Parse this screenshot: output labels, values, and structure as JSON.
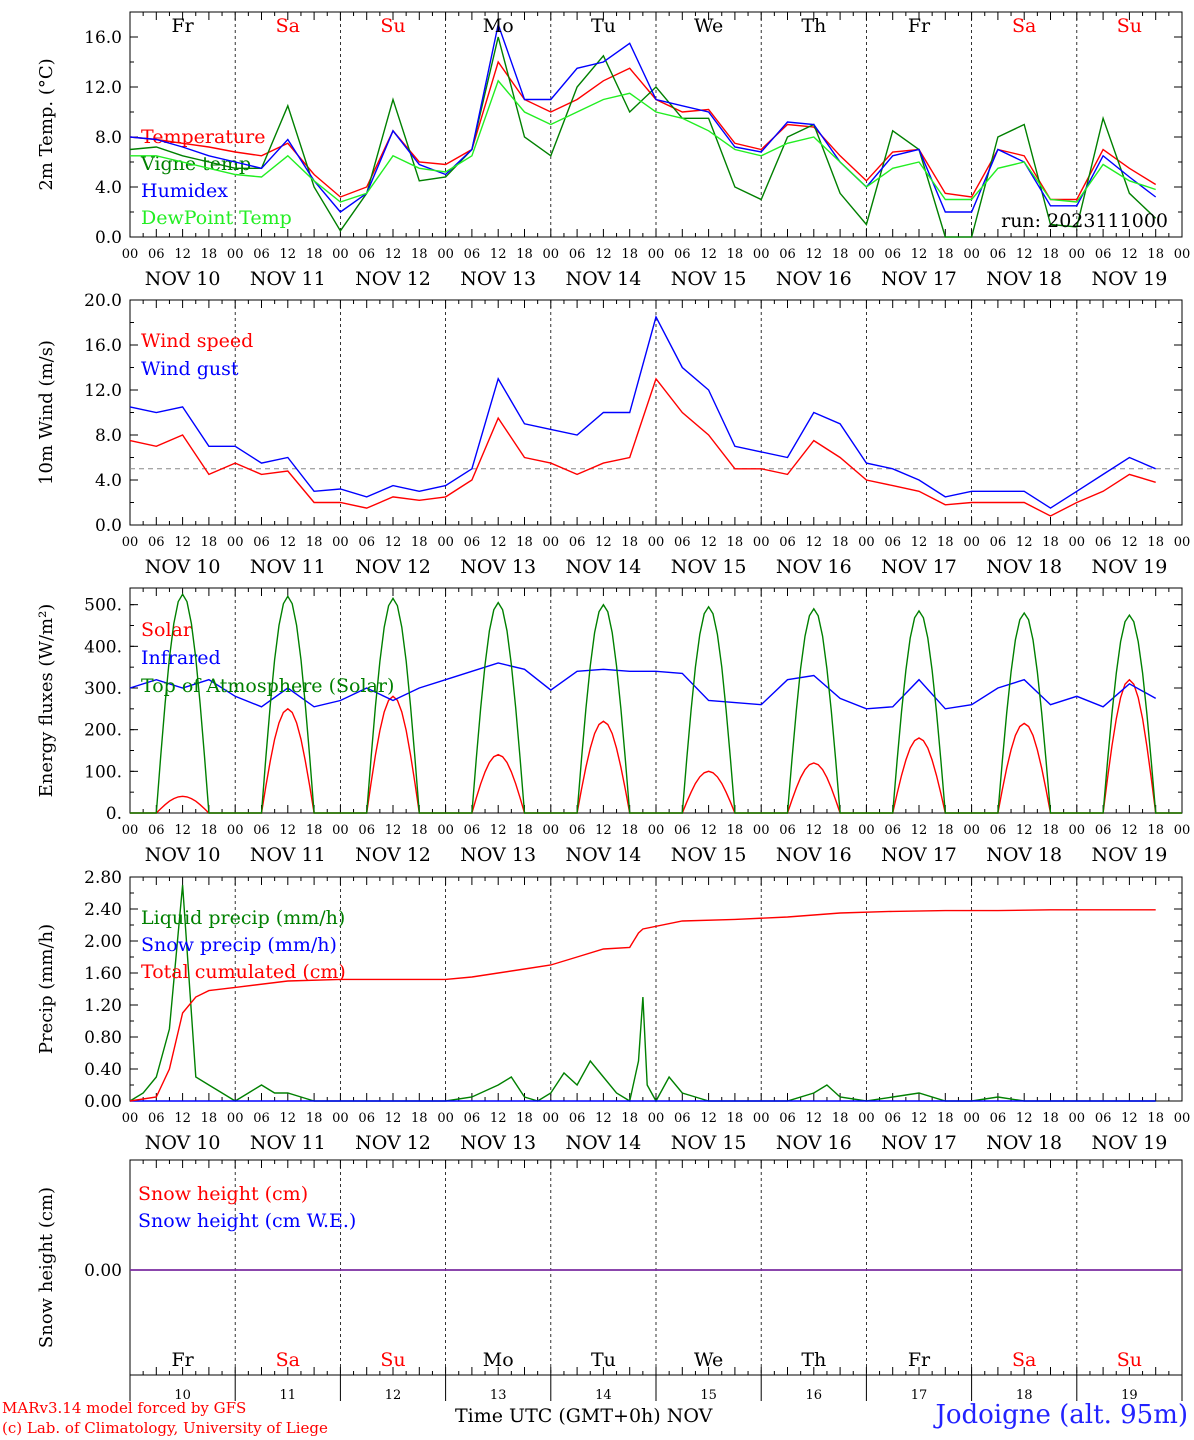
{
  "colors": {
    "red": "#ff0000",
    "blue": "#0000ff",
    "green": "#008000",
    "lightgreen": "#22ee22",
    "purple": "#7b2da0",
    "weekend": "#ff0000",
    "weekday": "#000000"
  },
  "days": {
    "weekday_labels": [
      "Fr",
      "Sa",
      "Su",
      "Mo",
      "Tu",
      "We",
      "Th",
      "Fr",
      "Sa",
      "Su"
    ],
    "weekend_flags": [
      false,
      true,
      true,
      false,
      false,
      false,
      false,
      false,
      true,
      true
    ],
    "date_labels": [
      "NOV 10",
      "NOV 11",
      "NOV 12",
      "NOV 13",
      "NOV 14",
      "NOV 15",
      "NOV 16",
      "NOV 17",
      "NOV 18",
      "NOV 19"
    ],
    "hour_labels": [
      "00",
      "06",
      "12",
      "18"
    ],
    "final_hour_label": "00",
    "day_numbers": [
      "10",
      "11",
      "12",
      "13",
      "14",
      "15",
      "16",
      "17",
      "18",
      "19"
    ]
  },
  "footer": {
    "model_credit": "MARv3.14 model forced by GFS",
    "lab_credit": "(c) Lab. of Climatology, University of Liege",
    "x_title": "Time UTC (GMT+0h) NOV",
    "station": "Jodoigne (alt. 95m)"
  },
  "chart_data": [
    {
      "type": "line",
      "ylabel": "2m Temp. (°C)",
      "ylim": [
        0,
        18
      ],
      "yticks": [
        "0.0",
        "4.0",
        "8.0",
        "12.0",
        "16.0"
      ],
      "ytick_values": [
        0,
        4,
        8,
        12,
        16
      ],
      "annotation": "run: 2023111000",
      "x_unit": "hours since NOV 10 00 UTC",
      "series": [
        {
          "name": "Temperature",
          "color": "#ff0000",
          "x": [
            0,
            6,
            12,
            18,
            24,
            30,
            36,
            42,
            48,
            54,
            60,
            66,
            72,
            78,
            84,
            90,
            96,
            102,
            108,
            114,
            120,
            126,
            132,
            138,
            144,
            150,
            156,
            162,
            168,
            174,
            180,
            186,
            192,
            198,
            204,
            210,
            216,
            222,
            228,
            234
          ],
          "values": [
            8,
            7.8,
            7.5,
            7.2,
            6.8,
            6.5,
            7.5,
            5,
            3.2,
            4,
            8.5,
            6,
            5.8,
            7,
            14,
            11,
            10,
            11,
            12.5,
            13.5,
            11,
            10,
            10.2,
            7.5,
            7,
            9,
            8.8,
            6.5,
            4.5,
            6.8,
            7,
            3.5,
            3.2,
            7,
            6.5,
            3,
            3,
            7,
            5.5,
            4.2
          ]
        },
        {
          "name": "Vigne temp",
          "color": "#008000",
          "x": [
            0,
            6,
            12,
            18,
            24,
            30,
            36,
            42,
            48,
            54,
            60,
            66,
            72,
            78,
            84,
            90,
            96,
            102,
            108,
            114,
            120,
            126,
            132,
            138,
            144,
            150,
            156,
            162,
            168,
            174,
            180,
            186,
            192,
            198,
            204,
            210,
            216,
            222,
            228,
            234
          ],
          "values": [
            7,
            7.2,
            6.5,
            6,
            5.5,
            5.5,
            10.5,
            4,
            0.5,
            3.5,
            11,
            4.5,
            4.8,
            7,
            16,
            8,
            6.5,
            12,
            14.5,
            10,
            12,
            9.5,
            9.5,
            4,
            3,
            8,
            9,
            3.5,
            1,
            8.5,
            7,
            0,
            0,
            8,
            9,
            1,
            0.8,
            9.5,
            3.5,
            1.5
          ]
        },
        {
          "name": "Humidex",
          "color": "#0000ff",
          "x": [
            0,
            6,
            12,
            18,
            24,
            30,
            36,
            42,
            48,
            54,
            60,
            66,
            72,
            78,
            84,
            90,
            96,
            102,
            108,
            114,
            120,
            126,
            132,
            138,
            144,
            150,
            156,
            162,
            168,
            174,
            180,
            186,
            192,
            198,
            204,
            210,
            216,
            222,
            228,
            234
          ],
          "values": [
            8,
            7.8,
            7.2,
            6.5,
            6,
            5.5,
            7.8,
            4.5,
            2,
            3.5,
            8.5,
            5.8,
            5,
            7,
            17,
            11,
            11,
            13.5,
            14,
            15.5,
            11,
            10.5,
            10,
            7.2,
            6.8,
            9.2,
            9,
            6,
            4,
            6.5,
            7,
            2,
            2,
            7,
            6,
            2.5,
            2.5,
            6.5,
            4.8,
            3.2
          ]
        },
        {
          "name": "DewPoint Temp",
          "color": "#22ee22",
          "x": [
            0,
            6,
            12,
            18,
            24,
            30,
            36,
            42,
            48,
            54,
            60,
            66,
            72,
            78,
            84,
            90,
            96,
            102,
            108,
            114,
            120,
            126,
            132,
            138,
            144,
            150,
            156,
            162,
            168,
            174,
            180,
            186,
            192,
            198,
            204,
            210,
            216,
            222,
            228,
            234
          ],
          "values": [
            6.5,
            6.5,
            6,
            5.5,
            5,
            4.8,
            6.5,
            4.5,
            2.8,
            3.5,
            6.5,
            5.5,
            5.2,
            6.5,
            12.5,
            10,
            9,
            10,
            11,
            11.5,
            10,
            9.5,
            8.5,
            7,
            6.5,
            7.5,
            8,
            6,
            4,
            5.5,
            6,
            3,
            3,
            5.5,
            6,
            3,
            2.8,
            5.8,
            4.5,
            3.8
          ]
        }
      ]
    },
    {
      "type": "line",
      "ylabel": "10m Wind (m/s)",
      "ylim": [
        0,
        20
      ],
      "yticks": [
        "0.0",
        "4.0",
        "8.0",
        "12.0",
        "16.0",
        "20.0"
      ],
      "ytick_values": [
        0,
        4,
        8,
        12,
        16,
        20
      ],
      "reference_line": 5,
      "x_unit": "hours since NOV 10 00 UTC",
      "series": [
        {
          "name": "Wind speed",
          "color": "#ff0000",
          "x": [
            0,
            6,
            12,
            18,
            24,
            30,
            36,
            42,
            48,
            54,
            60,
            66,
            72,
            78,
            84,
            90,
            96,
            102,
            108,
            114,
            120,
            126,
            132,
            138,
            144,
            150,
            156,
            162,
            168,
            174,
            180,
            186,
            192,
            198,
            204,
            210,
            216,
            222,
            228,
            234
          ],
          "values": [
            7.5,
            7,
            8,
            4.5,
            5.5,
            4.5,
            4.8,
            2,
            2,
            1.5,
            2.5,
            2.2,
            2.5,
            4,
            9.5,
            6,
            5.5,
            4.5,
            5.5,
            6,
            13,
            10,
            8,
            5,
            5,
            4.5,
            7.5,
            6,
            4,
            3.5,
            3,
            1.8,
            2,
            2,
            2,
            0.8,
            2,
            3,
            4.5,
            3.8
          ]
        },
        {
          "name": "Wind gust",
          "color": "#0000ff",
          "x": [
            0,
            6,
            12,
            18,
            24,
            30,
            36,
            42,
            48,
            54,
            60,
            66,
            72,
            78,
            84,
            90,
            96,
            102,
            108,
            114,
            120,
            126,
            132,
            138,
            144,
            150,
            156,
            162,
            168,
            174,
            180,
            186,
            192,
            198,
            204,
            210,
            216,
            222,
            228,
            234
          ],
          "values": [
            10.5,
            10,
            10.5,
            7,
            7,
            5.5,
            6,
            3,
            3.2,
            2.5,
            3.5,
            3,
            3.5,
            5,
            13,
            9,
            8.5,
            8,
            10,
            10,
            18.5,
            14,
            12,
            7,
            6.5,
            6,
            10,
            9,
            5.5,
            5,
            4,
            2.5,
            3,
            3,
            3,
            1.5,
            3,
            4.5,
            6,
            5
          ]
        }
      ]
    },
    {
      "type": "line",
      "ylabel": "Energy fluxes (W/m²)",
      "ylim": [
        0,
        540
      ],
      "yticks": [
        "0.",
        "100.",
        "200.",
        "300.",
        "400.",
        "500."
      ],
      "ytick_values": [
        0,
        100,
        200,
        300,
        400,
        500
      ],
      "x_unit": "hours since NOV 10 00 UTC",
      "series": [
        {
          "name": "Solar",
          "color": "#ff0000",
          "kind": "daily-peak",
          "peaks": [
            40,
            250,
            280,
            140,
            220,
            100,
            120,
            180,
            215,
            320
          ]
        },
        {
          "name": "Infrared",
          "color": "#0000ff",
          "x": [
            0,
            6,
            12,
            18,
            24,
            30,
            36,
            42,
            48,
            54,
            60,
            66,
            72,
            78,
            84,
            90,
            96,
            102,
            108,
            114,
            120,
            126,
            132,
            138,
            144,
            150,
            156,
            162,
            168,
            174,
            180,
            186,
            192,
            198,
            204,
            210,
            216,
            222,
            228,
            234
          ],
          "values": [
            300,
            320,
            300,
            320,
            280,
            255,
            300,
            255,
            270,
            300,
            270,
            300,
            320,
            340,
            360,
            345,
            295,
            340,
            345,
            340,
            340,
            335,
            270,
            265,
            260,
            320,
            330,
            275,
            250,
            255,
            320,
            250,
            260,
            300,
            320,
            260,
            280,
            255,
            310,
            275
          ]
        },
        {
          "name": "Top of Atmosphere (Solar)",
          "color": "#008000",
          "kind": "daily-peak",
          "peaks": [
            525,
            520,
            515,
            505,
            500,
            495,
            490,
            485,
            480,
            475
          ]
        }
      ]
    },
    {
      "type": "line",
      "ylabel": "Precip (mm/h)",
      "ylim": [
        0,
        2.8
      ],
      "yticks": [
        "0.00",
        "0.40",
        "0.80",
        "1.20",
        "1.60",
        "2.00",
        "2.40",
        "2.80"
      ],
      "ytick_values": [
        0,
        0.4,
        0.8,
        1.2,
        1.6,
        2,
        2.4,
        2.8
      ],
      "x_unit": "hours since NOV 10 00 UTC",
      "series": [
        {
          "name": "Liquid precip (mm/h)",
          "color": "#008000",
          "x": [
            0,
            3,
            6,
            9,
            12,
            15,
            18,
            21,
            24,
            27,
            30,
            33,
            36,
            39,
            42,
            45,
            48,
            54,
            60,
            66,
            72,
            78,
            84,
            87,
            90,
            93,
            96,
            99,
            102,
            105,
            108,
            111,
            114,
            116,
            117,
            118,
            120,
            123,
            126,
            129,
            132,
            138,
            150,
            156,
            159,
            162,
            168,
            174,
            180,
            186,
            192,
            198,
            204,
            210,
            216,
            222,
            228,
            234
          ],
          "values": [
            0,
            0.1,
            0.3,
            0.9,
            2.7,
            0.3,
            0.2,
            0.1,
            0,
            0.1,
            0.2,
            0.1,
            0.1,
            0.05,
            0,
            0,
            0,
            0,
            0,
            0,
            0,
            0.05,
            0.2,
            0.3,
            0.05,
            0,
            0.1,
            0.35,
            0.2,
            0.5,
            0.3,
            0.1,
            0,
            0.5,
            1.3,
            0.2,
            0,
            0.3,
            0.1,
            0.05,
            0,
            0,
            0,
            0.1,
            0.2,
            0.05,
            0,
            0.05,
            0.1,
            0,
            0,
            0.05,
            0,
            0,
            0,
            0,
            0,
            0
          ]
        },
        {
          "name": "Snow precip (mm/h)",
          "color": "#0000ff",
          "x": [
            0,
            234
          ],
          "values": [
            0,
            0
          ]
        },
        {
          "name": "Total cumulated (cm)",
          "color": "#ff0000",
          "x": [
            0,
            6,
            9,
            12,
            15,
            18,
            24,
            36,
            48,
            60,
            72,
            78,
            84,
            90,
            96,
            102,
            108,
            114,
            116,
            117,
            126,
            138,
            150,
            162,
            174,
            186,
            198,
            210,
            222,
            234
          ],
          "values": [
            0,
            0.05,
            0.4,
            1.1,
            1.3,
            1.38,
            1.42,
            1.5,
            1.52,
            1.52,
            1.52,
            1.55,
            1.6,
            1.65,
            1.7,
            1.8,
            1.9,
            1.92,
            2.1,
            2.15,
            2.25,
            2.27,
            2.3,
            2.35,
            2.37,
            2.38,
            2.38,
            2.39,
            2.39,
            2.39
          ]
        }
      ]
    },
    {
      "type": "line",
      "ylabel": "Snow height (cm)",
      "yticks": [
        "0.00"
      ],
      "x_unit": "hours since NOV 10 00 UTC",
      "series": [
        {
          "name": "Snow height (cm)",
          "color": "#ff0000",
          "x": [
            0,
            240
          ],
          "values": [
            0,
            0
          ]
        },
        {
          "name": "Snow height (cm W.E.)",
          "color": "#0000ff",
          "x": [
            0,
            240
          ],
          "values": [
            0,
            0
          ]
        }
      ]
    }
  ]
}
